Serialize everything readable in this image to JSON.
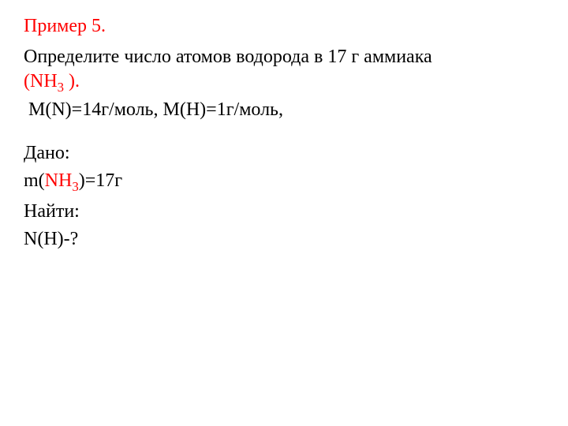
{
  "title": "Пример 5.",
  "problem": {
    "line1": "Определите число атомов водорода в 17 г аммиака",
    "formula_open": "(NH",
    "formula_sub": "3",
    "formula_close": " ).",
    "molar_n_label": "М(N)=14г/моль, М(Н)=1г/моль,"
  },
  "given": {
    "label": "Дано:",
    "mass_prefix": "m(",
    "mass_formula": "NH",
    "mass_sub": "3",
    "mass_suffix": ")=17г"
  },
  "find": {
    "label": "Найти:",
    "value": "N(H)-?"
  },
  "colors": {
    "title_color": "#ff0000",
    "text_color": "#000000",
    "formula_color": "#ff0000",
    "background": "#ffffff"
  },
  "typography": {
    "font_family": "Times New Roman",
    "base_fontsize_pt": 18
  }
}
